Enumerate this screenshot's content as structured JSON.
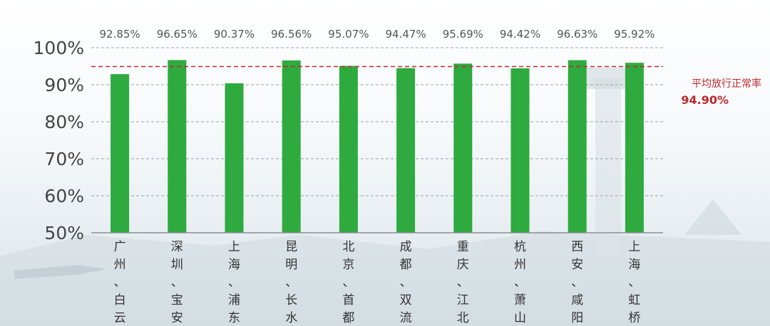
{
  "chart_data": {
    "type": "bar",
    "categories": [
      "广州、白云",
      "深圳、宝安",
      "上海、浦东",
      "昆明、长水",
      "北京、首都",
      "成都、双流",
      "重庆、江北",
      "杭州、萧山",
      "西安、咸阳",
      "上海、虹桥"
    ],
    "values": [
      92.85,
      96.65,
      90.37,
      96.56,
      95.07,
      94.47,
      95.69,
      94.42,
      96.63,
      95.92
    ],
    "value_labels": [
      "92.85%",
      "96.65%",
      "90.37%",
      "96.56%",
      "95.07%",
      "94.47%",
      "95.69%",
      "94.42%",
      "96.63%",
      "95.92%"
    ],
    "ylim": [
      50,
      100
    ],
    "yticks": [
      50,
      60,
      70,
      80,
      90,
      100
    ],
    "ytick_labels": [
      "50%",
      "60%",
      "70%",
      "80%",
      "90%",
      "100%"
    ],
    "grid": true,
    "bar_color": "#2eaa3f",
    "reference_line": {
      "value": 94.9,
      "label": "平均放行正常率",
      "value_label": "94.90%",
      "color": "#c0282d"
    }
  }
}
